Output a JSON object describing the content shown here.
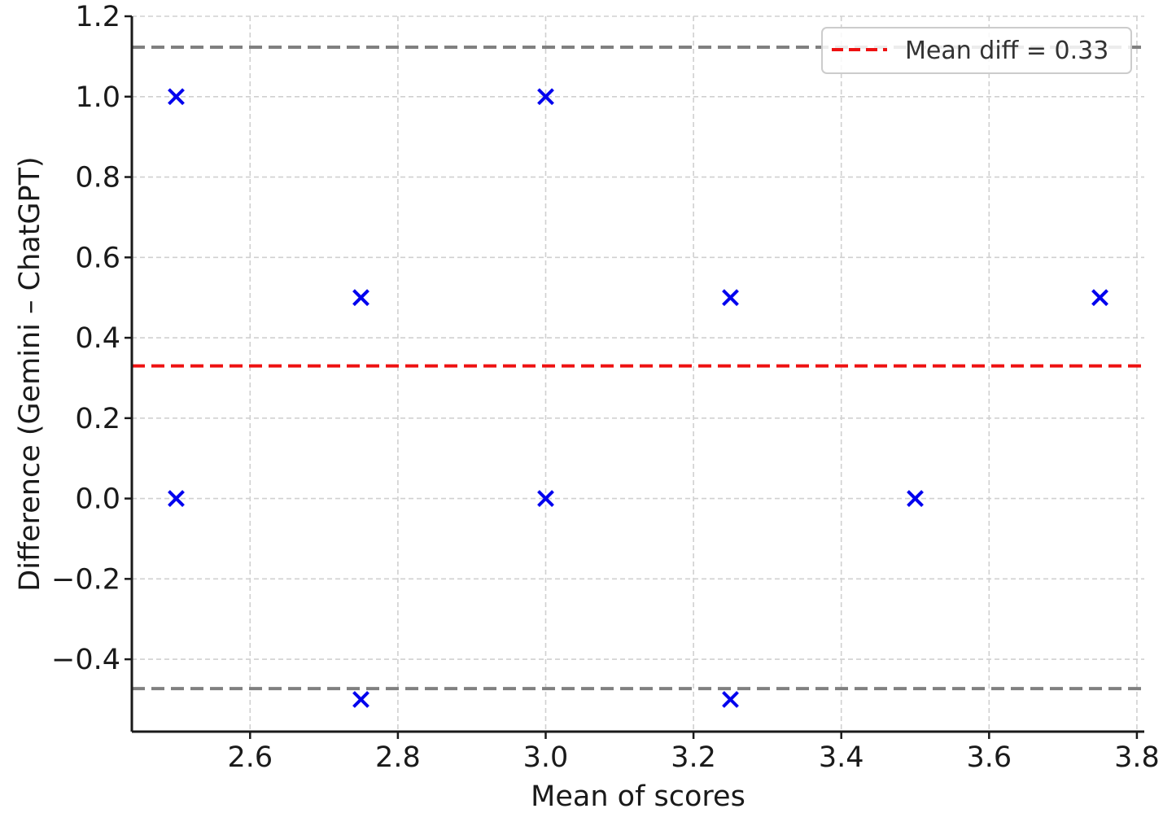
{
  "chart_data": {
    "type": "scatter",
    "title": "",
    "xlabel": "Mean of scores",
    "ylabel": "Difference (Gemini – ChatGPT)",
    "xlim": [
      2.44,
      3.81
    ],
    "ylim": [
      -0.58,
      1.2
    ],
    "xticks": [
      2.6,
      2.8,
      3.0,
      3.2,
      3.4,
      3.6,
      3.8
    ],
    "xtick_labels": [
      "2.6",
      "2.8",
      "3.0",
      "3.2",
      "3.4",
      "3.6",
      "3.8"
    ],
    "yticks": [
      -0.4,
      -0.2,
      0.0,
      0.2,
      0.4,
      0.6,
      0.8,
      1.0,
      1.2
    ],
    "ytick_labels": [
      "−0.4",
      "−0.2",
      "0.0",
      "0.2",
      "0.4",
      "0.6",
      "0.8",
      "1.0",
      "1.2"
    ],
    "grid": true,
    "legend_position": "top-right",
    "series": [
      {
        "marker": "x",
        "color": "#0000ee",
        "points": [
          {
            "x": 2.5,
            "y": 1.0
          },
          {
            "x": 2.5,
            "y": 0.0
          },
          {
            "x": 2.75,
            "y": 0.5
          },
          {
            "x": 2.75,
            "y": -0.5
          },
          {
            "x": 3.0,
            "y": 1.0
          },
          {
            "x": 3.0,
            "y": 0.0
          },
          {
            "x": 3.25,
            "y": 0.5
          },
          {
            "x": 3.25,
            "y": -0.5
          },
          {
            "x": 3.5,
            "y": 0.0
          },
          {
            "x": 3.75,
            "y": 0.5
          }
        ]
      }
    ],
    "reference_lines": [
      {
        "y": 0.33,
        "color": "#ee1111",
        "style": "dashed",
        "label": "Mean diff = 0.33"
      },
      {
        "y": 1.123,
        "color": "#808080",
        "style": "dashed"
      },
      {
        "y": -0.473,
        "color": "#808080",
        "style": "dashed"
      }
    ]
  }
}
